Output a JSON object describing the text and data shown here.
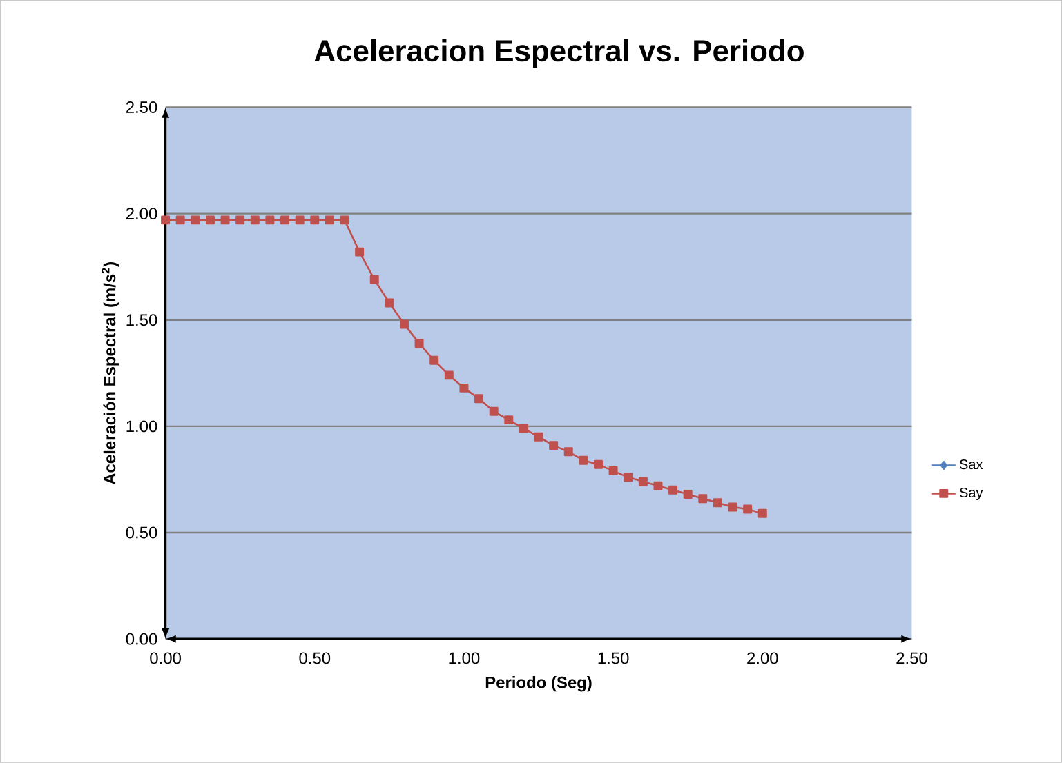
{
  "chart_data": {
    "type": "line",
    "title": "Aceleracion Espectral vs. Periodo",
    "xlabel": "Periodo (Seg)",
    "ylabel": "Aceleración  Espectral (m/s$^{2}$)",
    "x": [
      0,
      0.05,
      0.1,
      0.15,
      0.2,
      0.25,
      0.3,
      0.35,
      0.4,
      0.45,
      0.5,
      0.55,
      0.6,
      0.65,
      0.7,
      0.75,
      0.8,
      0.85,
      0.9,
      0.95,
      1.0,
      1.05,
      1.1,
      1.15,
      1.2,
      1.25,
      1.3,
      1.35,
      1.4,
      1.45,
      1.5,
      1.55,
      1.6,
      1.65,
      1.7,
      1.75,
      1.8,
      1.85,
      1.9,
      1.95,
      2.0
    ],
    "series": [
      {
        "name": "Sax",
        "color": "#4f81bd",
        "marker": "diamond",
        "values": [
          null,
          null,
          null,
          null,
          null,
          null,
          null,
          null,
          null,
          null,
          null,
          null,
          null,
          null,
          null,
          null,
          null,
          null,
          null,
          null,
          null,
          null,
          null,
          null,
          null,
          null,
          null,
          null,
          null,
          null,
          null,
          null,
          null,
          null,
          null,
          null,
          null,
          null,
          null,
          null,
          null
        ]
      },
      {
        "name": "Say",
        "color": "#c0504d",
        "marker": "square",
        "values": [
          1.97,
          1.97,
          1.97,
          1.97,
          1.97,
          1.97,
          1.97,
          1.97,
          1.97,
          1.97,
          1.97,
          1.97,
          1.97,
          1.82,
          1.69,
          1.58,
          1.48,
          1.39,
          1.31,
          1.24,
          1.18,
          1.13,
          1.07,
          1.03,
          0.99,
          0.95,
          0.91,
          0.88,
          0.84,
          0.82,
          0.79,
          0.76,
          0.74,
          0.72,
          0.7,
          0.68,
          0.66,
          0.64,
          0.62,
          0.61,
          0.59
        ]
      }
    ],
    "xlim": [
      0,
      2.5
    ],
    "ylim": [
      0,
      2.5
    ],
    "xticks": [
      {
        "value": 0,
        "label": "0.00"
      },
      {
        "value": 0.5,
        "label": "0.50"
      },
      {
        "value": 1,
        "label": "1.00"
      },
      {
        "value": 1.5,
        "label": "1.50"
      },
      {
        "value": 2,
        "label": "2.00"
      },
      {
        "value": 2.5,
        "label": "2.50"
      }
    ],
    "yticks": [
      {
        "value": 0,
        "label": "0.00"
      },
      {
        "value": 0.5,
        "label": "0.50"
      },
      {
        "value": 1,
        "label": "1.00"
      },
      {
        "value": 1.5,
        "label": "1.50"
      },
      {
        "value": 2,
        "label": "2.00"
      },
      {
        "value": 2.5,
        "label": "2.50"
      }
    ],
    "grid": "y",
    "legend": "right",
    "line_style": "solid"
  }
}
